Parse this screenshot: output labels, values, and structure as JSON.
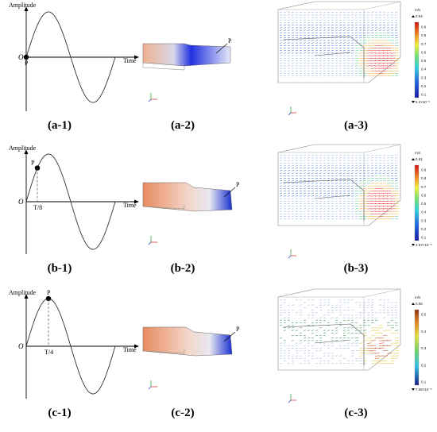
{
  "rows": [
    {
      "wave": {
        "ylabel": "Amplitude",
        "xlabel": "Time",
        "origin": "O",
        "point": "P",
        "marker": "",
        "phase_fraction": 0
      },
      "model": {
        "label": "P"
      },
      "flow": {
        "unit": "m/s",
        "max": "0.94",
        "min": "5.4×10⁻⁵",
        "ticks": [
          "0.9",
          "0.8",
          "0.7",
          "0.6",
          "0.5",
          "0.4",
          "0.3",
          "0.2",
          "0.1"
        ]
      },
      "captions": [
        "(a-1)",
        "(a-2)",
        "(a-3)"
      ]
    },
    {
      "wave": {
        "ylabel": "Amplitude",
        "xlabel": "Time",
        "origin": "O",
        "point": "P",
        "marker": "T/8",
        "phase_fraction": 0.125
      },
      "model": {
        "label": "P"
      },
      "flow": {
        "unit": "m/s",
        "max": "0.91",
        "min": "4.57×10⁻⁵",
        "ticks": [
          "0.9",
          "0.8",
          "0.7",
          "0.6",
          "0.5",
          "0.4",
          "0.3",
          "0.2",
          "0.1"
        ]
      },
      "captions": [
        "(b-1)",
        "(b-2)",
        "(b-3)"
      ]
    },
    {
      "wave": {
        "ylabel": "Amplitude",
        "xlabel": "Time",
        "origin": "O",
        "point": "P",
        "marker": "T/4",
        "phase_fraction": 0.25
      },
      "model": {
        "label": "P"
      },
      "flow": {
        "unit": "m/s",
        "max": "0.56",
        "min": "7.08×10⁻⁶",
        "ticks": [
          "0.5",
          "0.4",
          "0.3",
          "0.2",
          "0.1"
        ]
      },
      "captions": [
        "(c-1)",
        "(c-2)",
        "(c-3)"
      ]
    }
  ],
  "colors": {
    "accent_blue": "#1a2bd8",
    "accent_orange": "#e8946a",
    "flow_blue": "#3a6fd0",
    "flow_red": "#e02020"
  }
}
